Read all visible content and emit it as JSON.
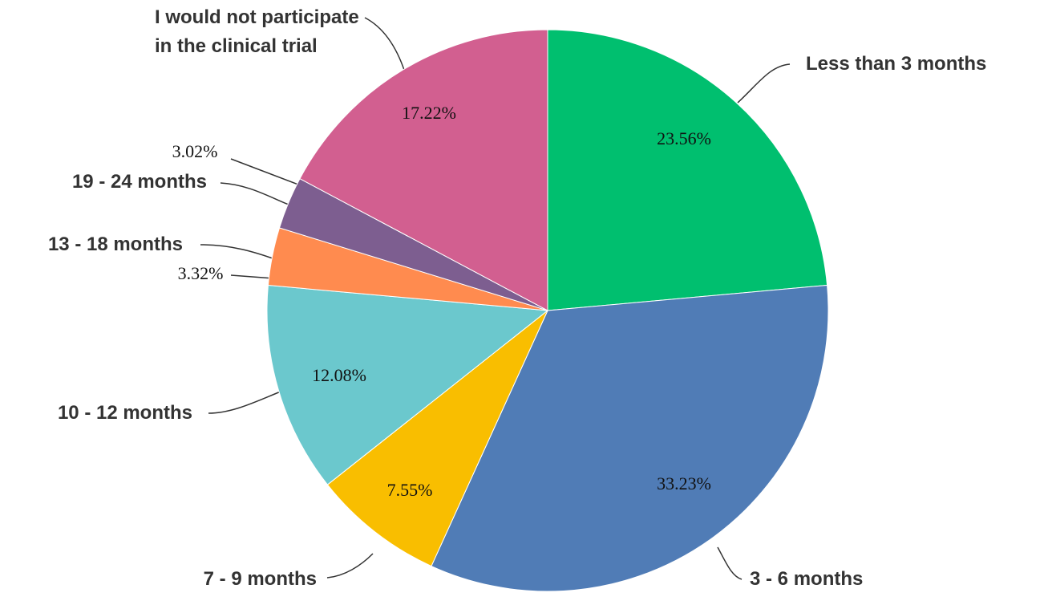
{
  "chart_data": {
    "type": "pie",
    "categories": [
      "Less than 3 months",
      "3 - 6 months",
      "7 - 9 months",
      "10 - 12 months",
      "13 - 18 months",
      "19 - 24 months",
      "I would not participate in the clinical trial"
    ],
    "values": [
      23.56,
      33.23,
      7.55,
      12.08,
      3.32,
      3.02,
      17.22
    ],
    "value_labels": [
      "23.56%",
      "33.23%",
      "7.55%",
      "12.08%",
      "3.32%",
      "3.02%",
      "17.22%"
    ],
    "colors": [
      "#00bf6f",
      "#507cb6",
      "#f9be00",
      "#6bc8cd",
      "#ff8b4f",
      "#7d5e90",
      "#d25f90"
    ]
  }
}
